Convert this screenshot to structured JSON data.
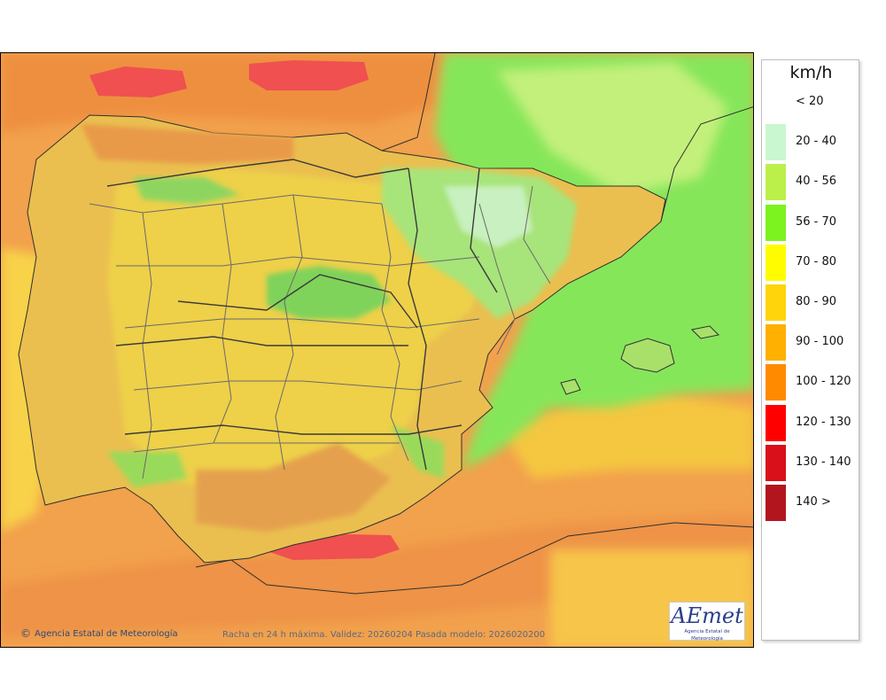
{
  "map": {
    "credit_text": "Agencia Estatal de Meteorología",
    "caption": "Racha en 24 h máxima. Validez: 20260204 Pasada modelo: 2026020200",
    "logo": {
      "word": "AEmet",
      "subtitle": "Agencia Estatal de Meteorología"
    }
  },
  "legend": {
    "unit": "km/h",
    "items": [
      {
        "label": "< 20",
        "color": "#ffffff"
      },
      {
        "label": "20 - 40",
        "color": "#c9f7cf"
      },
      {
        "label": "40 - 56",
        "color": "#bbf04a"
      },
      {
        "label": "56 - 70",
        "color": "#7cf21e"
      },
      {
        "label": "70 - 80",
        "color": "#fffc00"
      },
      {
        "label": "80 - 90",
        "color": "#ffd40b"
      },
      {
        "label": "90 - 100",
        "color": "#ffb000"
      },
      {
        "label": "100 - 120",
        "color": "#ff8a00"
      },
      {
        "label": "120 - 130",
        "color": "#ff0000"
      },
      {
        "label": "130 - 140",
        "color": "#d9101a"
      },
      {
        "label": "140 >",
        "color": "#b3151e"
      }
    ]
  }
}
